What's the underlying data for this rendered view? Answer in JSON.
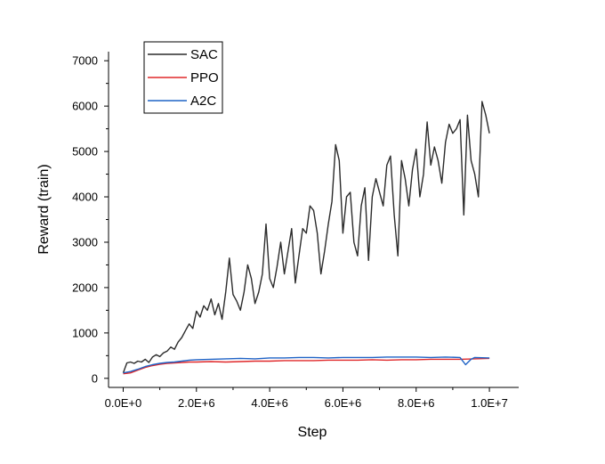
{
  "chart_data": {
    "type": "line",
    "xlabel": "Step",
    "ylabel": "Reward (train)",
    "xlim": [
      -400000,
      10800000
    ],
    "ylim": [
      -200,
      7200
    ],
    "x_ticks": [
      0,
      2000000,
      4000000,
      6000000,
      8000000,
      10000000
    ],
    "x_tick_labels": [
      "0.0E+0",
      "2.0E+6",
      "4.0E+6",
      "6.0E+6",
      "8.0E+6",
      "1.0E+7"
    ],
    "y_ticks": [
      0,
      1000,
      2000,
      3000,
      4000,
      5000,
      6000,
      7000
    ],
    "y_tick_labels": [
      "0",
      "1000",
      "2000",
      "3000",
      "4000",
      "5000",
      "6000",
      "7000"
    ],
    "legend_position": "top-left",
    "grid": false,
    "series": [
      {
        "name": "SAC",
        "color": "#2b2b2b",
        "x": [
          0,
          100000,
          200000,
          300000,
          400000,
          500000,
          600000,
          700000,
          800000,
          900000,
          1000000,
          1100000,
          1200000,
          1300000,
          1400000,
          1500000,
          1600000,
          1700000,
          1800000,
          1900000,
          2000000,
          2100000,
          2200000,
          2300000,
          2400000,
          2500000,
          2600000,
          2700000,
          2800000,
          2900000,
          3000000,
          3100000,
          3200000,
          3300000,
          3400000,
          3500000,
          3600000,
          3700000,
          3800000,
          3900000,
          4000000,
          4100000,
          4200000,
          4300000,
          4400000,
          4500000,
          4600000,
          4700000,
          4800000,
          4900000,
          5000000,
          5100000,
          5200000,
          5300000,
          5400000,
          5500000,
          5600000,
          5700000,
          5800000,
          5900000,
          6000000,
          6100000,
          6200000,
          6300000,
          6400000,
          6500000,
          6600000,
          6700000,
          6800000,
          6900000,
          7000000,
          7100000,
          7200000,
          7300000,
          7400000,
          7500000,
          7600000,
          7700000,
          7800000,
          7900000,
          8000000,
          8100000,
          8200000,
          8300000,
          8400000,
          8500000,
          8600000,
          8700000,
          8800000,
          8900000,
          9000000,
          9100000,
          9200000,
          9300000,
          9400000,
          9500000,
          9600000,
          9700000,
          9800000,
          9900000,
          10000000
        ],
        "values": [
          120,
          340,
          360,
          330,
          380,
          360,
          420,
          350,
          470,
          520,
          480,
          560,
          600,
          690,
          640,
          800,
          900,
          1050,
          1200,
          1100,
          1480,
          1350,
          1600,
          1500,
          1750,
          1400,
          1650,
          1300,
          1900,
          2650,
          1850,
          1700,
          1500,
          1900,
          2500,
          2200,
          1650,
          1900,
          2300,
          3400,
          2200,
          2000,
          2450,
          3000,
          2300,
          2800,
          3300,
          2100,
          2700,
          3300,
          3200,
          3800,
          3700,
          3200,
          2300,
          2800,
          3400,
          3900,
          5150,
          4800,
          3200,
          4000,
          4100,
          3000,
          2700,
          3800,
          4200,
          2600,
          4000,
          4400,
          4100,
          3800,
          4700,
          4900,
          3600,
          2700,
          4800,
          4400,
          3800,
          4600,
          5050,
          4000,
          4500,
          5650,
          4700,
          5100,
          4800,
          4300,
          5200,
          5600,
          5400,
          5500,
          5700,
          3600,
          5800,
          4800,
          4500,
          4000,
          6100,
          5800,
          5400
        ]
      },
      {
        "name": "PPO",
        "color": "#e0282a",
        "x": [
          0,
          200000,
          400000,
          600000,
          800000,
          1000000,
          1200000,
          1400000,
          1600000,
          1800000,
          2000000,
          2400000,
          2800000,
          3200000,
          3600000,
          4000000,
          4400000,
          4800000,
          5200000,
          5600000,
          6000000,
          6400000,
          6800000,
          7200000,
          7600000,
          8000000,
          8400000,
          8800000,
          9200000,
          9600000,
          10000000
        ],
        "values": [
          100,
          120,
          180,
          240,
          280,
          310,
          330,
          340,
          350,
          360,
          360,
          370,
          360,
          370,
          380,
          380,
          390,
          390,
          390,
          400,
          400,
          400,
          410,
          400,
          410,
          410,
          420,
          420,
          420,
          430,
          440
        ]
      },
      {
        "name": "A2C",
        "color": "#1f63c6",
        "x": [
          0,
          200000,
          400000,
          600000,
          800000,
          1000000,
          1200000,
          1400000,
          1600000,
          1800000,
          2000000,
          2400000,
          2800000,
          3200000,
          3600000,
          4000000,
          4400000,
          4800000,
          5200000,
          5600000,
          6000000,
          6400000,
          6800000,
          7200000,
          7600000,
          8000000,
          8400000,
          8800000,
          9200000,
          9350000,
          9500000,
          9600000,
          10000000
        ],
        "values": [
          120,
          150,
          200,
          260,
          300,
          330,
          350,
          360,
          380,
          400,
          410,
          420,
          430,
          440,
          430,
          450,
          450,
          460,
          460,
          450,
          460,
          460,
          460,
          470,
          470,
          470,
          460,
          470,
          460,
          300,
          420,
          460,
          450
        ]
      }
    ]
  }
}
